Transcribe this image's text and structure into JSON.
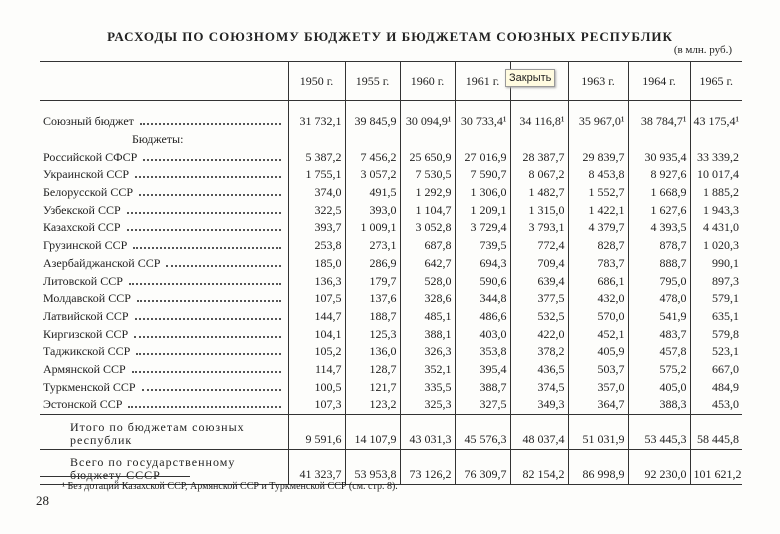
{
  "header": {
    "title": "РАСХОДЫ ПО СОЮЗНОМУ БЮДЖЕТУ И БЮДЖЕТАМ СОЮЗНЫХ РЕСПУБЛИК",
    "unit": "(в млн. руб.)"
  },
  "tooltip": "Закрыть",
  "table": {
    "columns": [
      "1950 г.",
      "1955 г.",
      "1960 г.",
      "1961 г.",
      null,
      "1963 г.",
      "1964 г.",
      "1965 г."
    ],
    "union_row": {
      "label": "Союзный бюджет",
      "values": [
        "31 732,1",
        "39 845,9",
        "30 094,9¹",
        "30 733,4¹",
        "34 116,8¹",
        "35 967,0¹",
        "38 784,7¹",
        "43 175,4¹"
      ]
    },
    "subheading": "Бюджеты:",
    "rows": [
      {
        "label": "Российской СФСР",
        "values": [
          "5 387,2",
          "7 456,2",
          "25 650,9",
          "27 016,9",
          "28 387,7",
          "29 839,7",
          "30 935,4",
          "33 339,2"
        ]
      },
      {
        "label": "Украинской ССР",
        "values": [
          "1 755,1",
          "3 057,2",
          "7 530,5",
          "7 590,7",
          "8 067,2",
          "8 453,8",
          "8 927,6",
          "10 017,4"
        ]
      },
      {
        "label": "Белорусской ССР",
        "values": [
          "374,0",
          "491,5",
          "1 292,9",
          "1 306,0",
          "1 482,7",
          "1 552,7",
          "1 668,9",
          "1 885,2"
        ]
      },
      {
        "label": "Узбекской ССР",
        "values": [
          "322,5",
          "393,0",
          "1 104,7",
          "1 209,1",
          "1 315,0",
          "1 422,1",
          "1 627,6",
          "1 943,3"
        ]
      },
      {
        "label": "Казахской ССР",
        "values": [
          "393,7",
          "1 009,1",
          "3 052,8",
          "3 729,4",
          "3 793,1",
          "4 379,7",
          "4 393,5",
          "4 431,0"
        ]
      },
      {
        "label": "Грузинской ССР",
        "values": [
          "253,8",
          "273,1",
          "687,8",
          "739,5",
          "772,4",
          "828,7",
          "878,7",
          "1 020,3"
        ]
      },
      {
        "label": "Азербайджанской ССР",
        "values": [
          "185,0",
          "286,9",
          "642,7",
          "694,3",
          "709,4",
          "783,7",
          "888,7",
          "990,1"
        ]
      },
      {
        "label": "Литовской ССР",
        "values": [
          "136,3",
          "179,7",
          "528,0",
          "590,6",
          "639,4",
          "686,1",
          "795,0",
          "897,3"
        ]
      },
      {
        "label": "Молдавской ССР",
        "values": [
          "107,5",
          "137,6",
          "328,6",
          "344,8",
          "377,5",
          "432,0",
          "478,0",
          "579,1"
        ]
      },
      {
        "label": "Латвийской ССР",
        "values": [
          "144,7",
          "188,7",
          "485,1",
          "486,6",
          "532,5",
          "570,0",
          "541,9",
          "635,1"
        ]
      },
      {
        "label": "Киргизской ССР",
        "values": [
          "104,1",
          "125,3",
          "388,1",
          "403,0",
          "422,0",
          "452,1",
          "483,7",
          "579,8"
        ]
      },
      {
        "label": "Таджикской ССР",
        "values": [
          "105,2",
          "136,0",
          "326,3",
          "353,8",
          "378,2",
          "405,9",
          "457,8",
          "523,1"
        ]
      },
      {
        "label": "Армянской ССР",
        "values": [
          "114,7",
          "128,7",
          "352,1",
          "395,4",
          "436,5",
          "503,7",
          "575,2",
          "667,0"
        ]
      },
      {
        "label": "Туркменской ССР",
        "values": [
          "100,5",
          "121,7",
          "335,5",
          "388,7",
          "374,5",
          "357,0",
          "405,0",
          "484,9"
        ]
      },
      {
        "label": "Эстонской ССР",
        "values": [
          "107,3",
          "123,2",
          "325,3",
          "327,5",
          "349,3",
          "364,7",
          "388,3",
          "453,0"
        ]
      }
    ],
    "totals": [
      {
        "label": "Итого по бюджетам союзных республик",
        "values": [
          "9 591,6",
          "14 107,9",
          "43 031,3",
          "45 576,3",
          "48 037,4",
          "51 031,9",
          "53 445,3",
          "58 445,8"
        ]
      },
      {
        "label": "Всего по государственному бюджету СССР",
        "values": [
          "41 323,7",
          "53 953,8",
          "73 126,2",
          "76 309,7",
          "82 154,2",
          "86 998,9",
          "92 230,0",
          "101 621,2"
        ]
      }
    ]
  },
  "footnote": "¹ Без дотаций Казахской ССР, Армянской ССР и Туркменской ССР (см. стр. 8).",
  "page_number": "28"
}
